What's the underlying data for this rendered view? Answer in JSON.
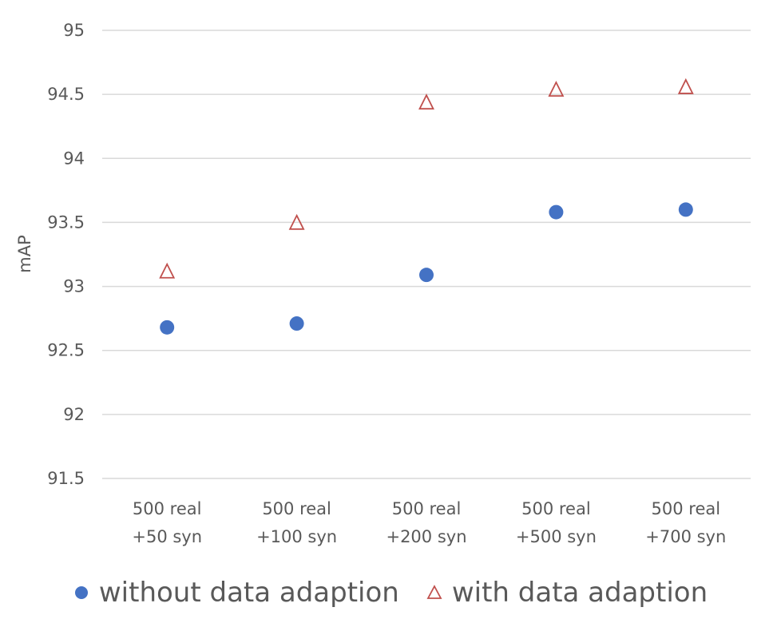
{
  "chart_data": {
    "type": "scatter",
    "title": "",
    "xlabel": "",
    "ylabel": "mAP",
    "categories": [
      [
        "500 real",
        "+50 syn"
      ],
      [
        "500 real",
        "+100 syn"
      ],
      [
        "500 real",
        "+200 syn"
      ],
      [
        "500 real",
        "+500 syn"
      ],
      [
        "500 real",
        "+700 syn"
      ]
    ],
    "ylim": [
      91.5,
      95
    ],
    "yticks": [
      "91.5",
      "92",
      "92.5",
      "93",
      "93.5",
      "94",
      "94.5",
      "95"
    ],
    "grid": true,
    "legend_position": "bottom",
    "series": [
      {
        "name": "without data adaption",
        "marker": "circle",
        "color": "#4472c4",
        "values": [
          92.68,
          92.71,
          93.09,
          93.58,
          93.6
        ]
      },
      {
        "name": "with data adaption",
        "marker": "triangle-open",
        "color": "#c0504d",
        "values": [
          93.11,
          93.49,
          94.43,
          94.53,
          94.55
        ]
      }
    ]
  }
}
